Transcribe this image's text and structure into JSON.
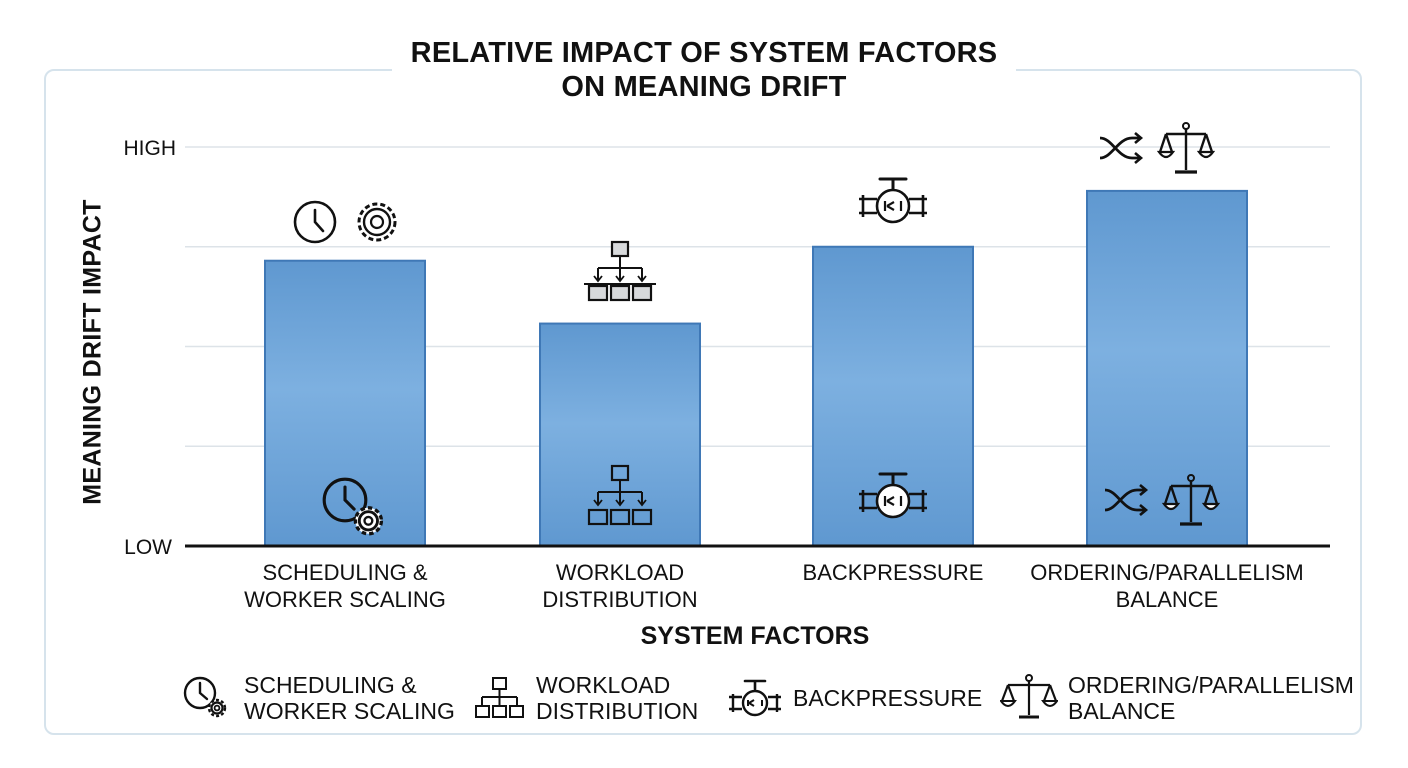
{
  "title_line1": "RELATIVE IMPACT OF SYSTEM FACTORS",
  "title_line2": "ON MEANING DRIFT",
  "chart_data": {
    "type": "bar",
    "title": "RELATIVE IMPACT OF SYSTEM FACTORS ON MEANING DRIFT",
    "xlabel": "SYSTEM FACTORS",
    "ylabel": "MEANING DRIFT IMPACT",
    "y_tick_labels": {
      "high": "HIGH",
      "low": "LOW"
    },
    "ylim": [
      0,
      4
    ],
    "grid": true,
    "categories": [
      {
        "line1": "SCHEDULING &",
        "line2": "WORKER SCALING",
        "icon": "clock-gear-icon"
      },
      {
        "line1": "WORKLOAD",
        "line2": "DISTRIBUTION",
        "icon": "hierarchy-icon"
      },
      {
        "line1": "BACKPRESSURE",
        "line2": "",
        "icon": "valve-icon"
      },
      {
        "line1": "ORDERING/PARALLELISM",
        "line2": "BALANCE",
        "icon": "shuffle-scales-icon"
      }
    ],
    "values": [
      2.86,
      2.23,
      3.0,
      3.56
    ],
    "bar_color": "#5f98d0",
    "bar_color_light": "#7db0e0",
    "bar_border": "#3f78b6"
  },
  "legend": [
    {
      "line1": "SCHEDULING &",
      "line2": "WORKER SCALING",
      "icon": "clock-gear-icon"
    },
    {
      "line1": "WORKLOAD",
      "line2": "DISTRIBUTION",
      "icon": "hierarchy-icon"
    },
    {
      "line1": "BACKPRESSURE",
      "line2": "",
      "icon": "valve-icon"
    },
    {
      "line1": "ORDERING/PARALLELISM",
      "line2": "BALANCE",
      "icon": "scales-icon"
    }
  ]
}
